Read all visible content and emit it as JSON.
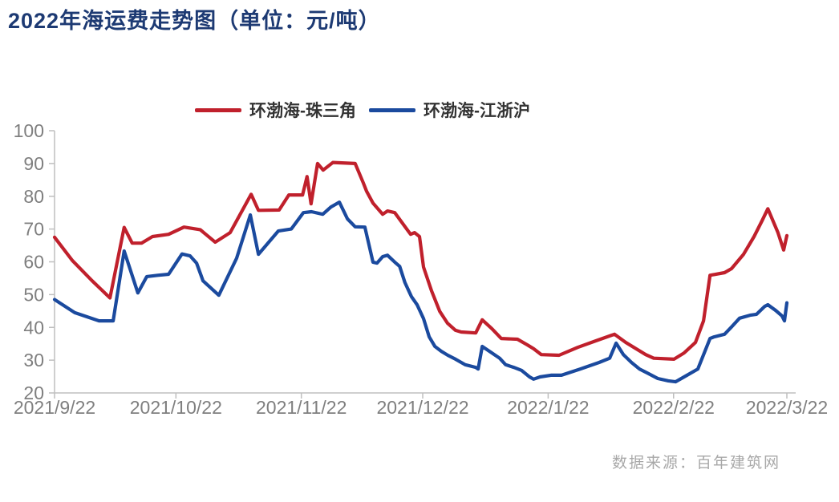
{
  "title": {
    "text": "2022年海运费走势图（单位：元/吨）",
    "color": "#1d3a73"
  },
  "source": {
    "text": "数据来源：百年建筑网",
    "color": "#a8a8a8"
  },
  "axes": {
    "line_color": "#bfbfbf",
    "label_color": "#7f7f7f"
  },
  "chart_data": {
    "type": "line",
    "title": "2022年海运费走势图（单位：元/吨）",
    "xlabel": "",
    "ylabel": "",
    "x_unit": "days_since_2021-09-22",
    "x_range": [
      0,
      181
    ],
    "ylim": [
      20,
      100
    ],
    "y_ticks": [
      20,
      30,
      40,
      50,
      60,
      70,
      80,
      90,
      100
    ],
    "x_tick_labels": [
      "2021/9/22",
      "2021/10/22",
      "2021/11/22",
      "2021/12/22",
      "2022/1/22",
      "2022/2/22",
      "2022/3/22"
    ],
    "x_tick_days": [
      0,
      30,
      61,
      91,
      122,
      153,
      181
    ],
    "grid": false,
    "legend_position": "top-center",
    "series": [
      {
        "key": "bohai-pearl-river-delta",
        "name": "环渤海-珠三角",
        "color": "#c0202c",
        "points": [
          [
            0,
            67.5
          ],
          [
            4.4,
            60.4
          ],
          [
            9.3,
            54.2
          ],
          [
            13.7,
            49
          ],
          [
            17.2,
            70.5
          ],
          [
            19.2,
            65.7
          ],
          [
            21.5,
            65.7
          ],
          [
            24.2,
            67.7
          ],
          [
            28.2,
            68.4
          ],
          [
            32,
            70.6
          ],
          [
            36,
            69.8
          ],
          [
            39.7,
            66
          ],
          [
            43.4,
            68.9
          ],
          [
            48.6,
            80.6
          ],
          [
            50.4,
            75.7
          ],
          [
            55.5,
            75.8
          ],
          [
            57.9,
            80.4
          ],
          [
            61.3,
            80.4
          ],
          [
            62.4,
            86
          ],
          [
            63.4,
            77.7
          ],
          [
            65,
            90
          ],
          [
            66.4,
            88
          ],
          [
            68.8,
            90.3
          ],
          [
            74.3,
            90
          ],
          [
            76.3,
            84.1
          ],
          [
            77.1,
            81.6
          ],
          [
            78.7,
            77.9
          ],
          [
            81.1,
            74.5
          ],
          [
            82.3,
            75.5
          ],
          [
            84.1,
            75
          ],
          [
            87,
            70.1
          ],
          [
            88,
            68.4
          ],
          [
            89,
            68.9
          ],
          [
            90.2,
            67.7
          ],
          [
            91.2,
            58.4
          ],
          [
            93.2,
            51.1
          ],
          [
            95.2,
            44.9
          ],
          [
            97.1,
            41.3
          ],
          [
            99.1,
            39.1
          ],
          [
            100.5,
            38.6
          ],
          [
            104.1,
            38.3
          ],
          [
            105.7,
            42.3
          ],
          [
            108.1,
            39.6
          ],
          [
            110.4,
            36.6
          ],
          [
            114.4,
            36.4
          ],
          [
            116.8,
            34.7
          ],
          [
            118.4,
            33.5
          ],
          [
            120.3,
            31.7
          ],
          [
            124.7,
            31.5
          ],
          [
            129.3,
            33.9
          ],
          [
            133.8,
            35.9
          ],
          [
            138.4,
            37.9
          ],
          [
            141.2,
            35.4
          ],
          [
            143.7,
            33.5
          ],
          [
            146.1,
            31.7
          ],
          [
            148.1,
            30.6
          ],
          [
            153.1,
            30.3
          ],
          [
            155.6,
            32.2
          ],
          [
            158.4,
            35.4
          ],
          [
            160.4,
            42
          ],
          [
            162,
            55.9
          ],
          [
            165.6,
            56.7
          ],
          [
            167.3,
            57.9
          ],
          [
            170.3,
            62.3
          ],
          [
            172.9,
            67.7
          ],
          [
            174.9,
            72.6
          ],
          [
            176.3,
            76.2
          ],
          [
            178.8,
            68.9
          ],
          [
            180.2,
            63.6
          ],
          [
            181,
            68
          ]
        ]
      },
      {
        "key": "bohai-jiangzhehu",
        "name": "环渤海-江浙沪",
        "color": "#1b4a9e",
        "points": [
          [
            0,
            48.5
          ],
          [
            5,
            44.5
          ],
          [
            11,
            42
          ],
          [
            14.5,
            42
          ],
          [
            17.2,
            63.3
          ],
          [
            20.6,
            50.5
          ],
          [
            22.8,
            55.5
          ],
          [
            25.5,
            55.9
          ],
          [
            28.2,
            56.2
          ],
          [
            31.5,
            62.4
          ],
          [
            33.5,
            61.8
          ],
          [
            35.1,
            59.6
          ],
          [
            36.7,
            54.2
          ],
          [
            40.6,
            49.8
          ],
          [
            45,
            61.1
          ],
          [
            48.4,
            74.3
          ],
          [
            50.4,
            62.3
          ],
          [
            55.3,
            69.4
          ],
          [
            58.5,
            70
          ],
          [
            61.5,
            75
          ],
          [
            63.5,
            75.3
          ],
          [
            66.3,
            74.5
          ],
          [
            68.3,
            76.7
          ],
          [
            70.4,
            78.2
          ],
          [
            72.4,
            73.1
          ],
          [
            74.3,
            70.7
          ],
          [
            76.7,
            70.6
          ],
          [
            77.7,
            65.3
          ],
          [
            78.7,
            59.9
          ],
          [
            79.7,
            59.6
          ],
          [
            81.1,
            61.6
          ],
          [
            82.3,
            62
          ],
          [
            84.1,
            59.9
          ],
          [
            85.3,
            58.6
          ],
          [
            86.6,
            53.7
          ],
          [
            88.2,
            49.4
          ],
          [
            89.6,
            46.9
          ],
          [
            91.2,
            42.7
          ],
          [
            92.6,
            37.1
          ],
          [
            94,
            34.2
          ],
          [
            95.6,
            32.7
          ],
          [
            97.2,
            31.5
          ],
          [
            99.1,
            30.3
          ],
          [
            101.5,
            28.6
          ],
          [
            104.1,
            27.8
          ],
          [
            104.7,
            27.3
          ],
          [
            105.7,
            34.2
          ],
          [
            107.5,
            32.7
          ],
          [
            110,
            30.6
          ],
          [
            111.5,
            28.6
          ],
          [
            113.5,
            27.8
          ],
          [
            115.4,
            26.9
          ],
          [
            117.4,
            24.9
          ],
          [
            118.4,
            24.2
          ],
          [
            120,
            24.9
          ],
          [
            122.7,
            25.4
          ],
          [
            125.3,
            25.4
          ],
          [
            129.9,
            27.3
          ],
          [
            134.6,
            29.3
          ],
          [
            137.2,
            30.6
          ],
          [
            138.8,
            35.2
          ],
          [
            140.6,
            31.7
          ],
          [
            142.6,
            29.3
          ],
          [
            144.6,
            27.3
          ],
          [
            146.5,
            26.1
          ],
          [
            149.1,
            24.4
          ],
          [
            151.7,
            23.7
          ],
          [
            153.5,
            23.4
          ],
          [
            155.6,
            24.9
          ],
          [
            159,
            27.3
          ],
          [
            162,
            36.6
          ],
          [
            163,
            37.1
          ],
          [
            165.6,
            37.9
          ],
          [
            167.3,
            40.1
          ],
          [
            169.3,
            42.8
          ],
          [
            171.9,
            43.7
          ],
          [
            173.5,
            44
          ],
          [
            175.5,
            46.4
          ],
          [
            176.3,
            46.9
          ],
          [
            178.2,
            45.2
          ],
          [
            179.8,
            43.5
          ],
          [
            180.4,
            42
          ],
          [
            181,
            47.5
          ]
        ]
      }
    ]
  }
}
